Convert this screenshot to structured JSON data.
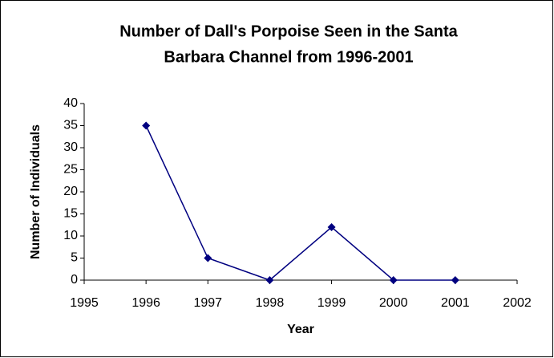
{
  "chart_data": {
    "type": "line",
    "title": [
      "Number of Dall's Porpoise Seen in the Santa",
      "Barbara Channel from 1996-2001"
    ],
    "x_label": "Year",
    "y_label": "Number of Individuals",
    "x": [
      1996,
      1997,
      1998,
      1999,
      2000,
      2001
    ],
    "values": [
      35,
      5,
      0,
      12,
      0,
      0
    ],
    "color": "#000080",
    "marker": "diamond",
    "xlim": [
      1995,
      2002
    ],
    "xticks": [
      1995,
      1996,
      1997,
      1998,
      1999,
      2000,
      2001,
      2002
    ],
    "ylim": [
      0,
      40
    ],
    "yticks": [
      0,
      5,
      10,
      15,
      20,
      25,
      30,
      35,
      40
    ],
    "grid": false
  }
}
